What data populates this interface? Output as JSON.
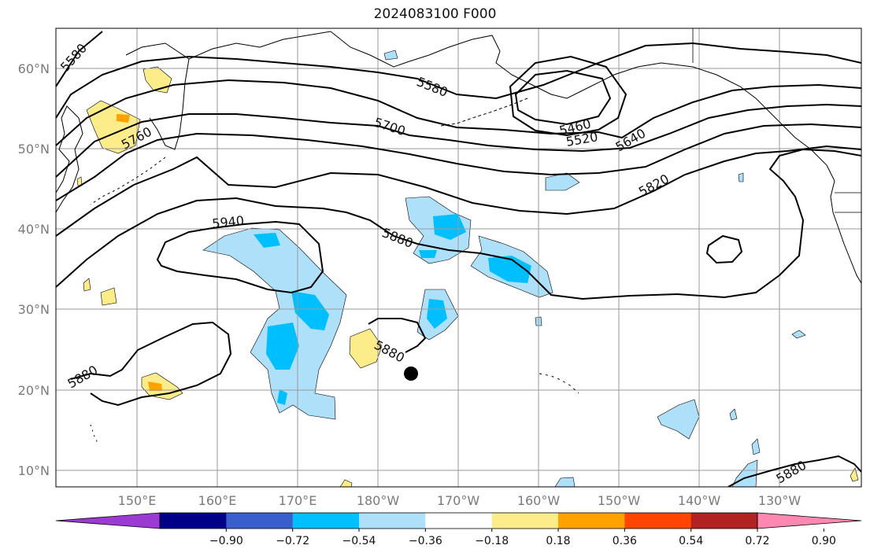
{
  "title": "2024083100 F000",
  "map": {
    "lat_labels": [
      "60°N",
      "50°N",
      "40°N",
      "30°N",
      "20°N",
      "10°N"
    ],
    "lon_labels": [
      "150°E",
      "160°E",
      "170°E",
      "180°W",
      "170°W",
      "160°W",
      "150°W",
      "140°W",
      "130°W"
    ],
    "contour_labels": [
      "5580",
      "5580",
      "5760",
      "5700",
      "5460",
      "5520",
      "5640",
      "5820",
      "5940",
      "5880",
      "5880",
      "5880",
      "5880"
    ],
    "colors": {
      "land_outline": "#000000",
      "grid": "#9a9a9a",
      "neg_light": "#aee0fa",
      "neg_mid": "#00bfff",
      "pos_light": "#fdec8a",
      "pos_mid": "#ffa200"
    }
  },
  "colorbar": {
    "ticks": [
      "−0.90",
      "−0.72",
      "−0.54",
      "−0.36",
      "−0.18",
      "0.18",
      "0.36",
      "0.54",
      "0.72",
      "0.90"
    ],
    "colors": [
      "#9b3bd1",
      "#000088",
      "#3a5fcd",
      "#00bfff",
      "#aee0fa",
      "#ffffff",
      "#fdec8a",
      "#ffa200",
      "#ff4500",
      "#b22222",
      "#ff88b0"
    ]
  }
}
